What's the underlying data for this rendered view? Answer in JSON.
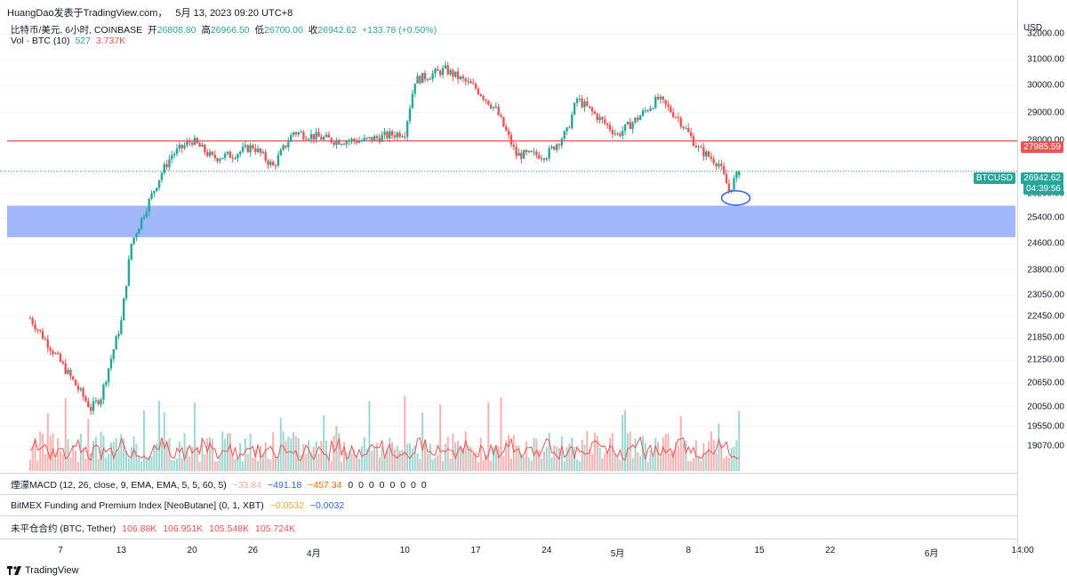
{
  "header": {
    "author": "HuangDao发表于TradingView.com，",
    "date": "5月 13, 2023 09:20 UTC+8"
  },
  "legend": {
    "symbol": "比特币/美元, 6小时, COINBASE",
    "open_label": "开",
    "open": "26808.80",
    "high_label": "高",
    "high": "26966.50",
    "low_label": "低",
    "low": "26700.00",
    "close_label": "收",
    "close": "26942.62",
    "change": "+133.78 (+0.50%)",
    "vol_label": "Vol · BTC (10)",
    "vol_value": "527",
    "vol_ma": "3.737K"
  },
  "price_axis": {
    "currency": "USD",
    "ticks": [
      "32000.00",
      "31000.00",
      "30000.00",
      "29000.00",
      "28000.00",
      "26200.00",
      "25400.00",
      "24600.00",
      "23800.00",
      "23050.00",
      "22450.00",
      "21850.00",
      "21250.00",
      "20650.00",
      "20050.00",
      "19550.00",
      "19070.00"
    ],
    "resistance_label": "27985.59",
    "symbol_label": "BTCUSD",
    "last_price_label": "26942.62",
    "countdown": "04:39:56"
  },
  "x_axis": {
    "ticks": [
      "7",
      "13",
      "20",
      "26",
      "4月",
      "10",
      "17",
      "24",
      "5月",
      "8",
      "15",
      "22",
      "6月",
      "14:00"
    ]
  },
  "indicators": [
    {
      "name": "煙濛MACD (12, 26, close, 9, EMA, EMA, 5, 5, 60, 5)",
      "values": [
        "−33.84",
        "−491.18",
        "−457.34",
        "0",
        "0",
        "0",
        "0",
        "0",
        "0",
        "0",
        "0"
      ]
    },
    {
      "name": "BitMEX Funding and Premium Index [NeoButane] (0, 1, XBT)",
      "values": [
        "−0.0532",
        "−0.0032"
      ]
    },
    {
      "name": "未平仓合约 (BTC, Tether)",
      "values": [
        "106.88K",
        "106.951K",
        "105.548K",
        "105.724K"
      ]
    }
  ],
  "footer": {
    "brand": "TradingView"
  },
  "colors": {
    "up": "#26a69a",
    "down": "#ef5350",
    "zone": "#9bb4fb",
    "resistance": "#ef5350",
    "annotation": "#2962ff"
  },
  "chart_data": {
    "type": "candlestick",
    "timeframe": "6h",
    "y_scale": "log",
    "ylim": [
      18700,
      32300
    ],
    "resistance_level": 27985.59,
    "support_zone": [
      24800,
      25800
    ],
    "last_price": 26942.62,
    "price_anchors": [
      {
        "date": "Mar 4",
        "price": 22400
      },
      {
        "date": "Mar 10",
        "price": 20000
      },
      {
        "date": "Mar 11",
        "price": 20300
      },
      {
        "date": "Mar 13",
        "price": 22300
      },
      {
        "date": "Mar 14",
        "price": 24600
      },
      {
        "date": "Mar 17",
        "price": 26900
      },
      {
        "date": "Mar 18",
        "price": 27500
      },
      {
        "date": "Mar 20",
        "price": 28000
      },
      {
        "date": "Mar 22",
        "price": 27400
      },
      {
        "date": "Mar 24",
        "price": 27500
      },
      {
        "date": "Mar 26",
        "price": 27800
      },
      {
        "date": "Mar 28",
        "price": 27100
      },
      {
        "date": "Mar 30",
        "price": 28300
      },
      {
        "date": "Apr 3",
        "price": 28000
      },
      {
        "date": "Apr 6",
        "price": 28000
      },
      {
        "date": "Apr 10",
        "price": 28300
      },
      {
        "date": "Apr 11",
        "price": 30200
      },
      {
        "date": "Apr 14",
        "price": 30600
      },
      {
        "date": "Apr 17",
        "price": 29900
      },
      {
        "date": "Apr 19",
        "price": 29100
      },
      {
        "date": "Apr 21",
        "price": 27500
      },
      {
        "date": "Apr 24",
        "price": 27500
      },
      {
        "date": "Apr 26",
        "price": 28300
      },
      {
        "date": "Apr 27",
        "price": 29500
      },
      {
        "date": "May 1",
        "price": 28200
      },
      {
        "date": "May 3",
        "price": 28800
      },
      {
        "date": "May 5",
        "price": 29500
      },
      {
        "date": "May 7",
        "price": 28800
      },
      {
        "date": "May 9",
        "price": 27700
      },
      {
        "date": "May 11",
        "price": 27200
      },
      {
        "date": "May 12",
        "price": 26300
      },
      {
        "date": "May 13",
        "price": 26942.62
      }
    ]
  }
}
